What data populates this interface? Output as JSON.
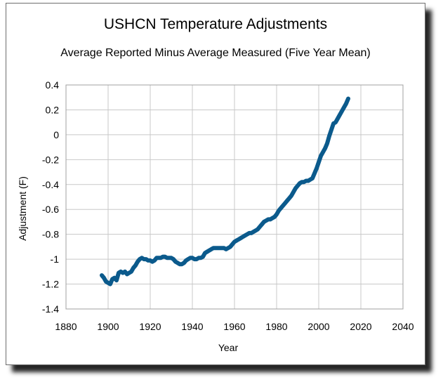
{
  "chart_data": {
    "type": "line",
    "title": "USHCN Temperature Adjustments",
    "subtitle": "Average Reported Minus Average Measured (Five Year Mean)",
    "xlabel": "Year",
    "ylabel": "Adjustment (F)",
    "xlim": [
      1880,
      2040
    ],
    "ylim": [
      -1.4,
      0.4
    ],
    "xticks": [
      1880,
      1900,
      1920,
      1940,
      1960,
      1980,
      2000,
      2020,
      2040
    ],
    "yticks": [
      0.4,
      0.2,
      0,
      -0.2,
      -0.4,
      -0.6,
      -0.8,
      -1,
      -1.2,
      -1.4
    ],
    "grid": true,
    "legend": "none",
    "series": [
      {
        "color": "#0b5a8c",
        "x": [
          1897,
          1898,
          1899,
          1900,
          1901,
          1902,
          1903,
          1904,
          1905,
          1906,
          1907,
          1908,
          1909,
          1910,
          1911,
          1912,
          1913,
          1914,
          1915,
          1916,
          1917,
          1918,
          1919,
          1920,
          1921,
          1922,
          1923,
          1924,
          1925,
          1926,
          1927,
          1928,
          1929,
          1930,
          1931,
          1932,
          1933,
          1934,
          1935,
          1936,
          1937,
          1938,
          1939,
          1940,
          1941,
          1942,
          1943,
          1944,
          1945,
          1946,
          1947,
          1948,
          1949,
          1950,
          1951,
          1952,
          1953,
          1954,
          1955,
          1956,
          1957,
          1958,
          1959,
          1960,
          1961,
          1962,
          1963,
          1964,
          1965,
          1966,
          1967,
          1968,
          1969,
          1970,
          1971,
          1972,
          1973,
          1974,
          1975,
          1976,
          1977,
          1978,
          1979,
          1980,
          1981,
          1982,
          1983,
          1984,
          1985,
          1986,
          1987,
          1988,
          1989,
          1990,
          1991,
          1992,
          1993,
          1994,
          1995,
          1996,
          1997,
          1998,
          1999,
          2000,
          2001,
          2002,
          2003,
          2004,
          2005,
          2006,
          2007,
          2008,
          2009,
          2010,
          2011,
          2012,
          2013,
          2014
        ],
        "y": [
          -1.13,
          -1.15,
          -1.18,
          -1.19,
          -1.2,
          -1.16,
          -1.15,
          -1.17,
          -1.11,
          -1.1,
          -1.11,
          -1.1,
          -1.12,
          -1.11,
          -1.1,
          -1.07,
          -1.05,
          -1.02,
          -1.0,
          -0.99,
          -1.0,
          -1.0,
          -1.01,
          -1.01,
          -1.02,
          -1.01,
          -0.99,
          -0.99,
          -0.99,
          -0.98,
          -0.98,
          -0.99,
          -0.99,
          -0.99,
          -1.0,
          -1.02,
          -1.03,
          -1.04,
          -1.04,
          -1.03,
          -1.01,
          -1.0,
          -0.99,
          -0.99,
          -1.0,
          -1.0,
          -0.99,
          -0.99,
          -0.98,
          -0.95,
          -0.94,
          -0.93,
          -0.92,
          -0.91,
          -0.91,
          -0.91,
          -0.91,
          -0.91,
          -0.91,
          -0.92,
          -0.91,
          -0.9,
          -0.88,
          -0.86,
          -0.85,
          -0.84,
          -0.83,
          -0.82,
          -0.81,
          -0.8,
          -0.79,
          -0.79,
          -0.78,
          -0.77,
          -0.76,
          -0.74,
          -0.72,
          -0.7,
          -0.69,
          -0.68,
          -0.68,
          -0.67,
          -0.66,
          -0.64,
          -0.61,
          -0.59,
          -0.57,
          -0.55,
          -0.53,
          -0.51,
          -0.49,
          -0.46,
          -0.43,
          -0.41,
          -0.39,
          -0.38,
          -0.38,
          -0.37,
          -0.37,
          -0.36,
          -0.35,
          -0.31,
          -0.27,
          -0.22,
          -0.17,
          -0.14,
          -0.11,
          -0.07,
          -0.01,
          0.04,
          0.09,
          0.1,
          0.13,
          0.16,
          0.19,
          0.22,
          0.25,
          0.29
        ]
      }
    ]
  }
}
